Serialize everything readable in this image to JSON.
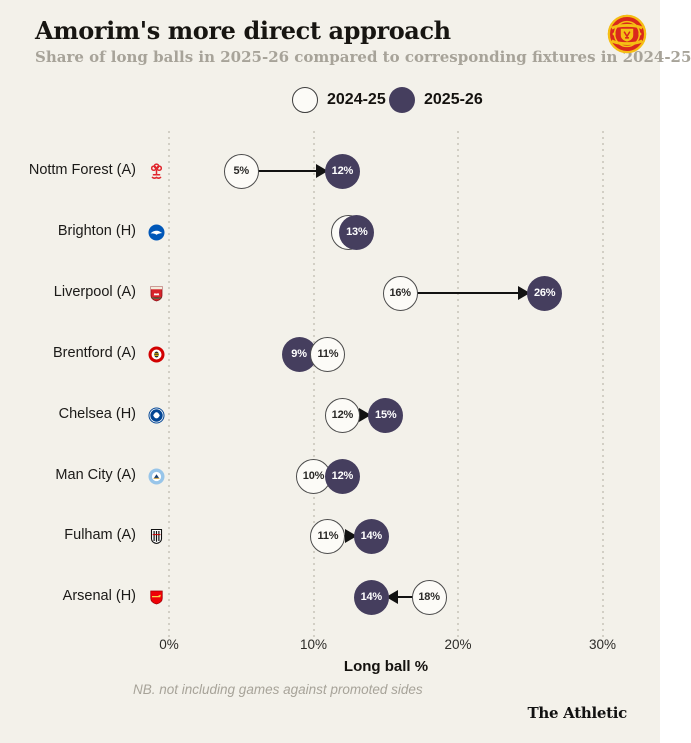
{
  "page": {
    "title": "Amorim's more direct approach",
    "subtitle": "Share of long balls in 2025-26 compared to corresponding fixtures in 2024-25",
    "footnote": "NB. not including games against promoted sides",
    "brand": "The Athletic"
  },
  "legend": {
    "items": [
      {
        "label": "2024-25",
        "key": "prev"
      },
      {
        "label": "2025-26",
        "key": "curr"
      }
    ]
  },
  "colors": {
    "background": "#f3f1ea",
    "season_2025_fill": "#453e5e",
    "season_2024_fill": "#fcfbf7",
    "season_2024_border": "#4c4c4c",
    "gridline": "#d2cfc5",
    "arrow": "#121212",
    "subtitle_gray": "#a7a399"
  },
  "chart_data": {
    "type": "scatter",
    "variant": "dumbbell-arrow",
    "title": "Amorim's more direct approach",
    "xlabel": "Long ball %",
    "ylabel": "",
    "xlim": [
      0,
      31
    ],
    "grid": "vertical-dotted",
    "legend_position": "top-center",
    "ticks": [
      {
        "v": 0,
        "label": "0%"
      },
      {
        "v": 10,
        "label": "10%"
      },
      {
        "v": 20,
        "label": "20%"
      },
      {
        "v": 30,
        "label": "30%"
      }
    ],
    "series_names": [
      "2024-25",
      "2025-26"
    ],
    "rows": [
      {
        "team": "Nottm Forest (A)",
        "badge": "nottm-forest-badge",
        "prev": 5,
        "curr": 12,
        "prev_label": "5%",
        "curr_label": "12%",
        "arrow": true,
        "top": "curr"
      },
      {
        "team": "Brighton (H)",
        "badge": "brighton-badge",
        "prev": 12.4,
        "curr": 13,
        "prev_label": "",
        "curr_label": "13%",
        "arrow": false,
        "top": "curr"
      },
      {
        "team": "Liverpool (A)",
        "badge": "liverpool-badge",
        "prev": 16,
        "curr": 26,
        "prev_label": "16%",
        "curr_label": "26%",
        "arrow": true,
        "top": "curr"
      },
      {
        "team": "Brentford (A)",
        "badge": "brentford-badge",
        "prev": 11,
        "curr": 9,
        "prev_label": "11%",
        "curr_label": "9%",
        "arrow": false,
        "top": "prev"
      },
      {
        "team": "Chelsea (H)",
        "badge": "chelsea-badge",
        "prev": 12,
        "curr": 15,
        "prev_label": "12%",
        "curr_label": "15%",
        "arrow": true,
        "top": "curr"
      },
      {
        "team": "Man City (A)",
        "badge": "man-city-badge",
        "prev": 10,
        "curr": 12,
        "prev_label": "10%",
        "curr_label": "12%",
        "arrow": false,
        "top": "curr"
      },
      {
        "team": "Fulham (A)",
        "badge": "fulham-badge",
        "prev": 11,
        "curr": 14,
        "prev_label": "11%",
        "curr_label": "14%",
        "arrow": true,
        "top": "curr"
      },
      {
        "team": "Arsenal (H)",
        "badge": "arsenal-badge",
        "prev": 18,
        "curr": 14,
        "prev_label": "18%",
        "curr_label": "14%",
        "arrow": true,
        "top": "curr"
      }
    ]
  }
}
